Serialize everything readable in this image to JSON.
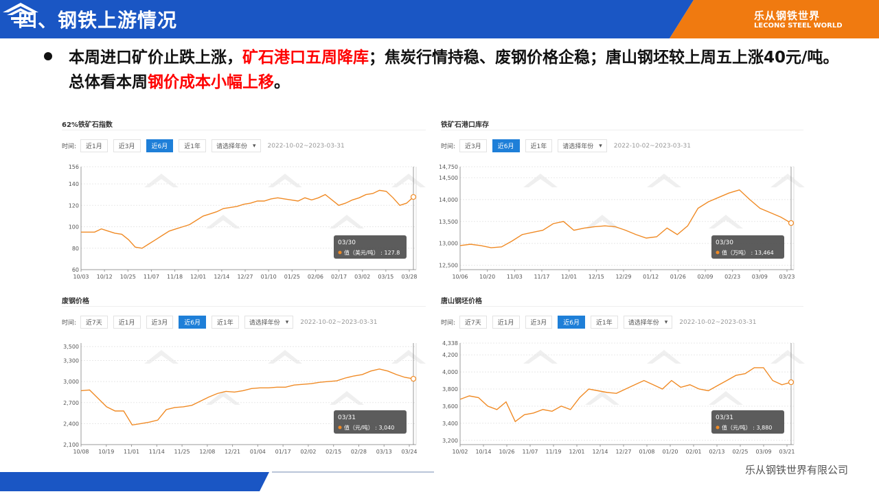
{
  "header": {
    "title": "四、钢铁上游情况",
    "brand_cn": "乐从钢铁世界",
    "brand_en": "LECONG STEEL WORLD",
    "colors": {
      "blue": "#1a56c4",
      "orange": "#f07a10"
    }
  },
  "summary": {
    "p1": "本周进口矿价止跌上涨，",
    "p2": "矿石港口五周降库",
    "p3": "；焦炭行情持稳、废钢价格企稳；唐山钢坯较上周五上涨40元/吨。总体看本周",
    "p4": "钢价成本小幅上移",
    "p5": "。"
  },
  "footer": {
    "company": "乐从钢铁世界有限公司"
  },
  "panels": [
    {
      "title": "62%铁矿石指数",
      "controls": {
        "label": "时间:",
        "buttons": [
          "近1月",
          "近3月",
          "近6月",
          "近1年"
        ],
        "active": "近6月",
        "select": "请选择年份",
        "range": "2022-10-02~2023-03-31"
      },
      "tooltip": {
        "date": "03/30",
        "label": "值（美元/吨）",
        "value": "127.8"
      },
      "chart_data": {
        "type": "line",
        "title": "62%铁矿石指数",
        "x_ticks": [
          "10/03",
          "10/12",
          "10/25",
          "11/07",
          "11/18",
          "12/01",
          "12/14",
          "12/27",
          "01/10",
          "01/25",
          "02/06",
          "02/17",
          "03/02",
          "03/15",
          "03/28"
        ],
        "y_ticks": [
          "156",
          "140",
          "120",
          "100",
          "80",
          "60"
        ],
        "ylim": [
          60,
          156
        ],
        "series": [
          {
            "values": [
              95,
              95,
              95,
              98,
              96,
              94,
              93,
              88,
              81,
              80,
              84,
              88,
              92,
              96,
              98,
              100,
              102,
              106,
              110,
              112,
              114,
              117,
              118,
              119,
              121,
              122,
              124,
              124,
              126,
              127,
              126,
              125,
              124,
              127,
              125,
              127,
              130,
              125,
              120,
              122,
              125,
              127,
              130,
              131,
              134,
              133,
              127,
              120,
              122,
              127.8
            ]
          }
        ],
        "grid": true
      }
    },
    {
      "title": "铁矿石港口库存",
      "controls": {
        "label": "时间:",
        "buttons": [
          "近3月",
          "近6月",
          "近1年"
        ],
        "active": "近6月",
        "select": "请选择年份",
        "range": "2022-10-02~2023-03-31"
      },
      "tooltip": {
        "date": "03/30",
        "label": "值（万吨）",
        "value": "13,464"
      },
      "chart_data": {
        "type": "line",
        "title": "铁矿石港口库存",
        "x_ticks": [
          "10/06",
          "10/20",
          "11/03",
          "11/17",
          "12/01",
          "12/15",
          "12/29",
          "01/12",
          "01/26",
          "02/09",
          "02/23",
          "03/09",
          "03/23"
        ],
        "y_ticks": [
          "14,750",
          "14,500",
          "14,000",
          "13,500",
          "13,000",
          "12,500"
        ],
        "ylim": [
          12400,
          14750
        ],
        "series": [
          {
            "values": [
              12950,
              12980,
              12950,
              12900,
              12920,
              13050,
              13200,
              13250,
              13300,
              13450,
              13500,
              13300,
              13350,
              13380,
              13400,
              13380,
              13300,
              13200,
              13120,
              13150,
              13350,
              13200,
              13400,
              13800,
              13950,
              14050,
              14150,
              14220,
              14000,
              13800,
              13700,
              13600,
              13464
            ]
          }
        ],
        "grid": true
      }
    },
    {
      "title": "废钢价格",
      "controls": {
        "label": "时间:",
        "buttons": [
          "近7天",
          "近1月",
          "近3月",
          "近6月",
          "近1年"
        ],
        "active": "近6月",
        "select": "请选择年份",
        "range": "2022-10-02~2023-03-31"
      },
      "tooltip": {
        "date": "03/31",
        "label": "值（元/吨）",
        "value": "3,040"
      },
      "chart_data": {
        "type": "line",
        "title": "废钢价格",
        "x_ticks": [
          "10/08",
          "10/19",
          "11/01",
          "11/14",
          "11/25",
          "12/08",
          "12/21",
          "01/04",
          "01/17",
          "02/02",
          "02/15",
          "02/28",
          "03/13",
          "03/24"
        ],
        "y_ticks": [
          "3,500",
          "3,300",
          "3,000",
          "2,700",
          "2,400",
          "2,100"
        ],
        "ylim": [
          2100,
          3550
        ],
        "series": [
          {
            "values": [
              2870,
              2880,
              2760,
              2640,
              2580,
              2580,
              2380,
              2400,
              2420,
              2450,
              2600,
              2630,
              2640,
              2660,
              2720,
              2780,
              2830,
              2860,
              2850,
              2870,
              2900,
              2910,
              2910,
              2920,
              2920,
              2950,
              2960,
              2970,
              2990,
              3000,
              3010,
              3050,
              3080,
              3100,
              3150,
              3180,
              3150,
              3100,
              3060,
              3040
            ]
          }
        ],
        "grid": true
      }
    },
    {
      "title": "唐山钢坯价格",
      "controls": {
        "label": "时间:",
        "buttons": [
          "近7天",
          "近1月",
          "近3月",
          "近6月",
          "近1年"
        ],
        "active": "近6月",
        "select": "请选择年份",
        "range": "2022-10-02~2023-03-31"
      },
      "tooltip": {
        "date": "03/31",
        "label": "值（元/吨）",
        "value": "3,880"
      },
      "chart_data": {
        "type": "line",
        "title": "唐山钢坯价格",
        "x_ticks": [
          "10/02",
          "10/14",
          "10/26",
          "11/07",
          "11/19",
          "12/01",
          "12/14",
          "12/27",
          "01/08",
          "01/20",
          "02/01",
          "02/13",
          "02/25",
          "03/09",
          "03/21"
        ],
        "y_ticks": [
          "4,338",
          "4,200",
          "4,000",
          "3,800",
          "3,600",
          "3,400",
          "3,200"
        ],
        "ylim": [
          3150,
          4338
        ],
        "series": [
          {
            "values": [
              3680,
              3720,
              3700,
              3600,
              3560,
              3650,
              3420,
              3500,
              3520,
              3560,
              3540,
              3600,
              3560,
              3700,
              3800,
              3780,
              3760,
              3750,
              3800,
              3850,
              3900,
              3850,
              3800,
              3900,
              3820,
              3850,
              3800,
              3780,
              3840,
              3900,
              3960,
              3980,
              4050,
              4050,
              3900,
              3850,
              3880
            ]
          }
        ],
        "grid": true
      }
    }
  ]
}
